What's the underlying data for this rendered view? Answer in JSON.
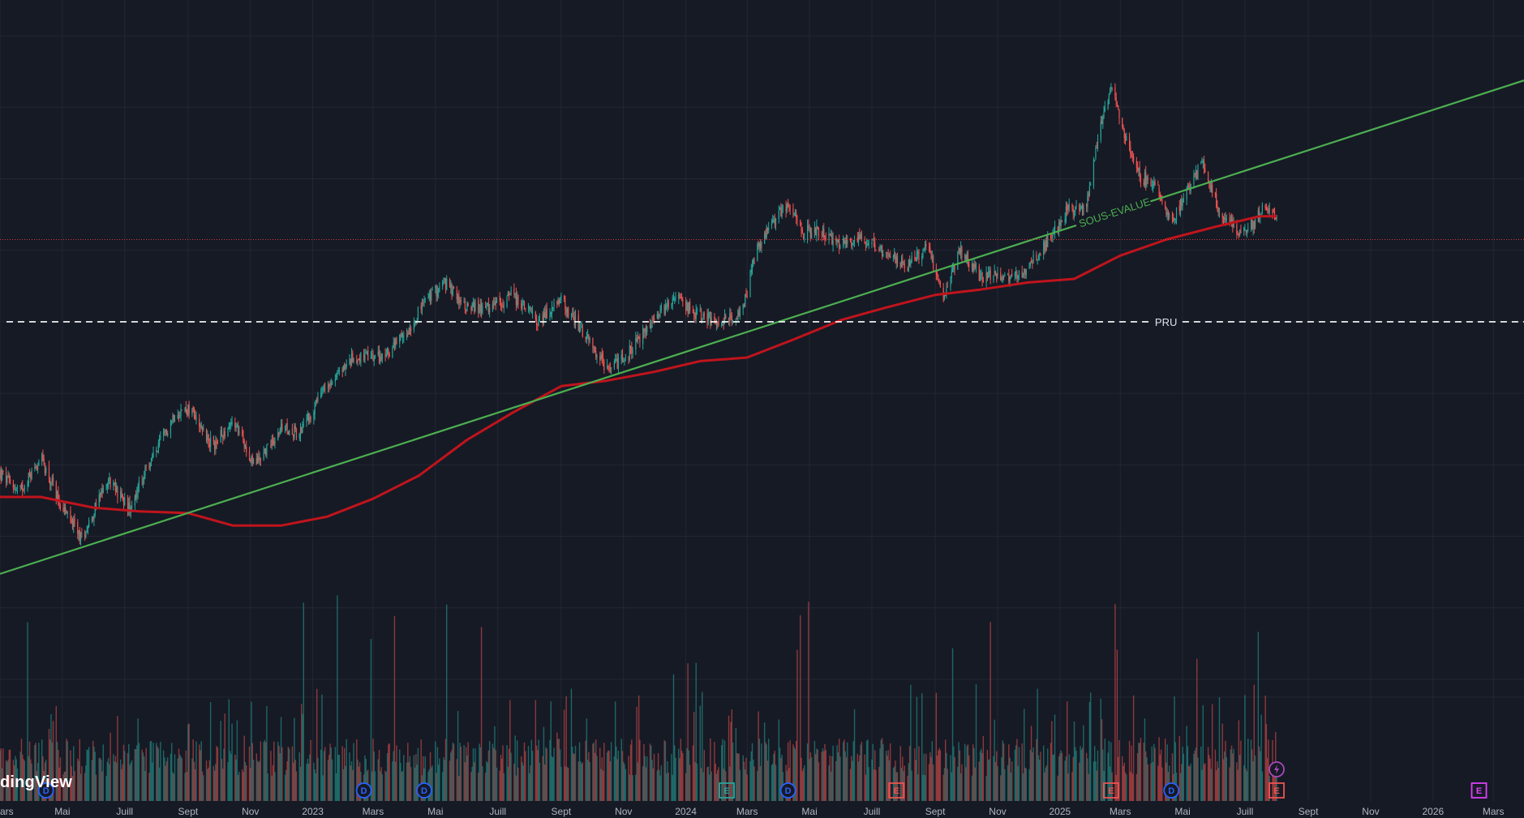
{
  "watermark": "dingView",
  "colors": {
    "background": "#161a25",
    "grid": "#232734",
    "up": "#26a69a",
    "down": "#ef5350",
    "ma": "#c0141c",
    "trendline": "#4caf50",
    "pru_line": "#ffffff",
    "price_dotted": "#d33c3c",
    "axis_text": "#b2b5be"
  },
  "chart_data": {
    "type": "candlestick",
    "title": "",
    "x_range": [
      "2022-03-01",
      "2026-03-31"
    ],
    "x_ticks": [
      {
        "date": "2022-03-01",
        "label": "ars"
      },
      {
        "date": "2022-05-01",
        "label": "Mai"
      },
      {
        "date": "2022-07-01",
        "label": "Juill"
      },
      {
        "date": "2022-09-01",
        "label": "Sept"
      },
      {
        "date": "2022-11-01",
        "label": "Nov"
      },
      {
        "date": "2023-01-01",
        "label": "2023"
      },
      {
        "date": "2023-03-01",
        "label": "Mars"
      },
      {
        "date": "2023-05-01",
        "label": "Mai"
      },
      {
        "date": "2023-07-01",
        "label": "Juill"
      },
      {
        "date": "2023-09-01",
        "label": "Sept"
      },
      {
        "date": "2023-11-01",
        "label": "Nov"
      },
      {
        "date": "2024-01-01",
        "label": "2024"
      },
      {
        "date": "2024-03-01",
        "label": "Mars"
      },
      {
        "date": "2024-05-01",
        "label": "Mai"
      },
      {
        "date": "2024-07-01",
        "label": "Juill"
      },
      {
        "date": "2024-09-01",
        "label": "Sept"
      },
      {
        "date": "2024-11-01",
        "label": "Nov"
      },
      {
        "date": "2025-01-01",
        "label": "2025"
      },
      {
        "date": "2025-03-01",
        "label": "Mars"
      },
      {
        "date": "2025-05-01",
        "label": "Mai"
      },
      {
        "date": "2025-07-01",
        "label": "Juill"
      },
      {
        "date": "2025-09-01",
        "label": "Sept"
      },
      {
        "date": "2025-11-01",
        "label": "Nov"
      },
      {
        "date": "2026-01-01",
        "label": "2026"
      },
      {
        "date": "2026-03-01",
        "label": "Mars"
      }
    ],
    "price_path": [
      [
        "2022-03-01",
        515
      ],
      [
        "2022-03-20",
        505
      ],
      [
        "2022-04-10",
        524
      ],
      [
        "2022-05-01",
        496
      ],
      [
        "2022-05-20",
        479
      ],
      [
        "2022-06-15",
        512
      ],
      [
        "2022-07-05",
        496
      ],
      [
        "2022-07-25",
        520
      ],
      [
        "2022-08-20",
        550
      ],
      [
        "2022-09-05",
        551
      ],
      [
        "2022-09-25",
        530
      ],
      [
        "2022-10-15",
        545
      ],
      [
        "2022-11-05",
        520
      ],
      [
        "2022-12-01",
        540
      ],
      [
        "2022-12-20",
        538
      ],
      [
        "2023-01-15",
        565
      ],
      [
        "2023-02-10",
        580
      ],
      [
        "2023-03-10",
        580
      ],
      [
        "2023-04-01",
        592
      ],
      [
        "2023-04-20",
        611
      ],
      [
        "2023-05-10",
        622
      ],
      [
        "2023-05-30",
        609
      ],
      [
        "2023-06-20",
        607
      ],
      [
        "2023-07-15",
        615
      ],
      [
        "2023-08-10",
        600
      ],
      [
        "2023-09-01",
        612
      ],
      [
        "2023-09-25",
        592
      ],
      [
        "2023-10-15",
        574
      ],
      [
        "2023-11-01",
        579
      ],
      [
        "2023-11-25",
        597
      ],
      [
        "2023-12-20",
        614
      ],
      [
        "2024-01-10",
        605
      ],
      [
        "2024-02-01",
        600
      ],
      [
        "2024-02-25",
        605
      ],
      [
        "2024-03-10",
        640
      ],
      [
        "2024-03-25",
        655
      ],
      [
        "2024-04-10",
        666
      ],
      [
        "2024-04-25",
        650
      ],
      [
        "2024-05-10",
        651
      ],
      [
        "2024-06-01",
        643
      ],
      [
        "2024-06-20",
        648
      ],
      [
        "2024-07-15",
        638
      ],
      [
        "2024-08-05",
        631
      ],
      [
        "2024-08-25",
        642
      ],
      [
        "2024-09-10",
        613
      ],
      [
        "2024-09-25",
        640
      ],
      [
        "2024-10-15",
        625
      ],
      [
        "2024-11-05",
        626
      ],
      [
        "2024-11-25",
        627
      ],
      [
        "2024-12-15",
        641
      ],
      [
        "2025-01-10",
        664
      ],
      [
        "2025-01-25",
        662
      ],
      [
        "2025-02-10",
        710
      ],
      [
        "2025-02-20",
        730
      ],
      [
        "2025-03-05",
        706
      ],
      [
        "2025-03-20",
        681
      ],
      [
        "2025-04-05",
        677
      ],
      [
        "2025-04-20",
        655
      ],
      [
        "2025-05-05",
        674
      ],
      [
        "2025-05-20",
        688
      ],
      [
        "2025-06-05",
        664
      ],
      [
        "2025-06-25",
        651
      ],
      [
        "2025-07-10",
        655
      ],
      [
        "2025-07-20",
        666
      ],
      [
        "2025-08-01",
        657
      ]
    ],
    "moving_average": [
      [
        "2022-03-01",
        502
      ],
      [
        "2022-04-10",
        502
      ],
      [
        "2022-06-01",
        496
      ],
      [
        "2022-07-15",
        494
      ],
      [
        "2022-09-01",
        493
      ],
      [
        "2022-10-15",
        486
      ],
      [
        "2022-12-01",
        486
      ],
      [
        "2023-01-15",
        491
      ],
      [
        "2023-03-01",
        501
      ],
      [
        "2023-04-15",
        514
      ],
      [
        "2023-06-01",
        534
      ],
      [
        "2023-07-15",
        549
      ],
      [
        "2023-09-01",
        564
      ],
      [
        "2023-10-15",
        567
      ],
      [
        "2023-12-01",
        572
      ],
      [
        "2024-01-15",
        578
      ],
      [
        "2024-03-01",
        580
      ],
      [
        "2024-04-15",
        590
      ],
      [
        "2024-06-01",
        601
      ],
      [
        "2024-07-15",
        608
      ],
      [
        "2024-09-01",
        615
      ],
      [
        "2024-10-15",
        618
      ],
      [
        "2024-12-01",
        622
      ],
      [
        "2025-01-15",
        624
      ],
      [
        "2025-03-01",
        637
      ],
      [
        "2025-04-15",
        646
      ],
      [
        "2025-06-01",
        653
      ],
      [
        "2025-07-15",
        659
      ],
      [
        "2025-08-01",
        659
      ]
    ],
    "trendline": {
      "start": [
        "2022-03-01",
        459
      ],
      "end": [
        "2026-03-31",
        735
      ]
    },
    "trendline_label": "SOUS-EVALUE",
    "pru": {
      "value": 600,
      "label": "PRU"
    },
    "last_price_line": 646,
    "y_range": [
      390,
      780
    ],
    "volume_range": [
      0,
      1200
    ]
  },
  "events": [
    {
      "date": "2022-04-15",
      "type": "dividend",
      "letter": "D",
      "color": "#2962ff"
    },
    {
      "date": "2023-02-20",
      "type": "dividend",
      "letter": "D",
      "color": "#2962ff"
    },
    {
      "date": "2023-04-20",
      "type": "dividend",
      "letter": "D",
      "color": "#2962ff"
    },
    {
      "date": "2024-02-10",
      "type": "earnings",
      "letter": "E",
      "color": "#26a69a"
    },
    {
      "date": "2024-04-10",
      "type": "dividend",
      "letter": "D",
      "color": "#2962ff"
    },
    {
      "date": "2024-07-25",
      "type": "earnings",
      "letter": "E",
      "color": "#ef5350"
    },
    {
      "date": "2025-02-20",
      "type": "earnings",
      "letter": "E",
      "color": "#ef5350"
    },
    {
      "date": "2025-04-20",
      "type": "dividend",
      "letter": "D",
      "color": "#2962ff"
    },
    {
      "date": "2025-08-01",
      "type": "earnings",
      "letter": "E",
      "color": "#ef5350"
    },
    {
      "date": "2026-02-15",
      "type": "earnings",
      "letter": "E",
      "color": "#e040fb"
    }
  ],
  "flash_event": {
    "date": "2025-08-01",
    "icon": "lightning-icon",
    "color": "#ab47bc"
  }
}
